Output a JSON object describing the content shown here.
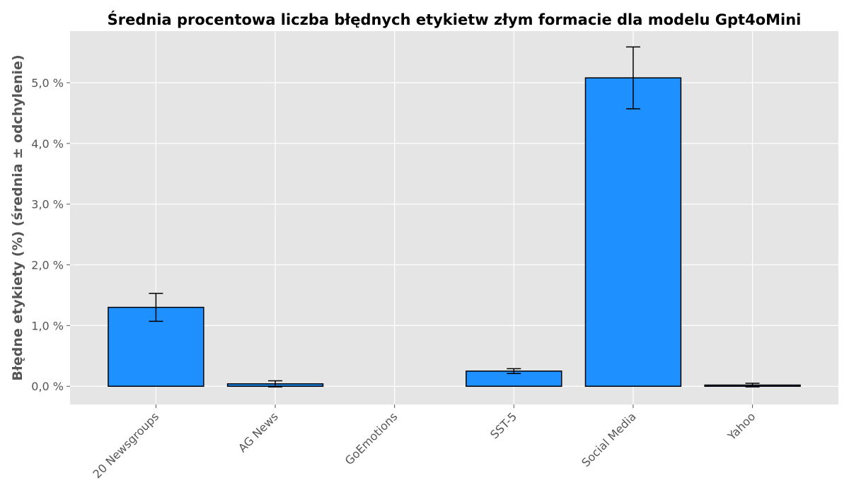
{
  "chart_data": {
    "type": "bar",
    "title": "Średnia procentowa liczba błędnych etykietw złym formacie dla modelu Gpt4oMini",
    "xlabel": "",
    "ylabel": "Błędne etykiety (%) (średnia ± odchylenie)",
    "categories": [
      "20 Newsgroups",
      "AG News",
      "GoEmotions",
      "SST-5",
      "Social Media",
      "Yahoo"
    ],
    "values": [
      1.3,
      0.04,
      0.0,
      0.25,
      5.08,
      0.02
    ],
    "errors": [
      0.23,
      0.05,
      0.0,
      0.04,
      0.51,
      0.03
    ],
    "ylim": [
      -0.3,
      5.85
    ],
    "yticks": [
      0,
      1,
      2,
      3,
      4,
      5
    ],
    "ytick_labels": [
      "0,0 %",
      "1,0 %",
      "2,0 %",
      "3,0 %",
      "4,0 %",
      "5,0 %"
    ],
    "grid": true,
    "colors": {
      "bar": "#1e90ff",
      "edge": "#000000",
      "background": "#e5e5e5",
      "grid": "#ffffff"
    }
  }
}
